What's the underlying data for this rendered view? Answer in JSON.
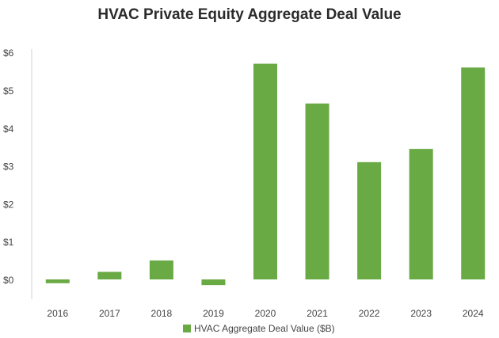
{
  "chart_data": {
    "type": "bar",
    "title": "HVAC Private Equity Aggregate Deal Value",
    "categories": [
      "2016",
      "2017",
      "2018",
      "2019",
      "2020",
      "2021",
      "2022",
      "2023",
      "2024"
    ],
    "series": [
      {
        "name": "HVAC Aggregate Deal Value ($B)",
        "values": [
          -0.1,
          0.2,
          0.5,
          -0.15,
          5.7,
          4.65,
          3.1,
          3.45,
          5.6
        ],
        "color": "#6aaa45"
      }
    ],
    "yticks": [
      "$0",
      "$1",
      "$2",
      "$3",
      "$4",
      "$5",
      "$6"
    ],
    "ylim": [
      -0.5,
      6
    ],
    "xlabel": "",
    "ylabel": "",
    "grid": false,
    "legend_position": "bottom"
  }
}
